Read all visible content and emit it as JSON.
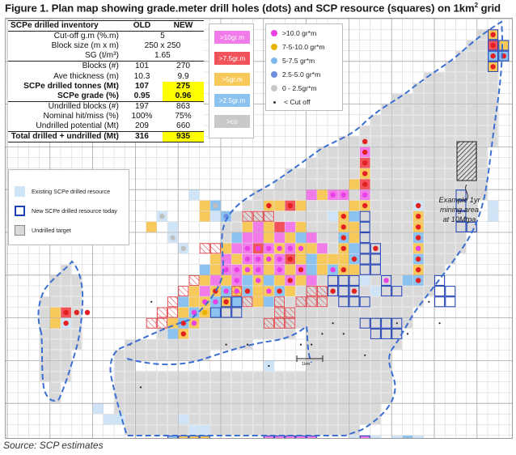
{
  "title": {
    "text": "Figure 1. Plan map showing grade.meter drill holes (dots) and SCP resource (squares) on 1km",
    "sup": "2",
    "tail": " grid"
  },
  "inventory": {
    "header": {
      "label": "SCPe drilled inventory",
      "old": "OLD",
      "new": "NEW"
    },
    "rows": [
      {
        "label": "Cut-off g.m (%.m)",
        "old": "5",
        "new": "",
        "span": true
      },
      {
        "label": "Block size (m x m)",
        "old": "250 x 250",
        "new": "",
        "span": true
      },
      {
        "label": "SG (t/m³)",
        "old": "1.65",
        "new": "",
        "span": true
      },
      {
        "label": "Blocks (#)",
        "old": "101",
        "new": "270"
      },
      {
        "label": "Ave thickness (m)",
        "old": "10.3",
        "new": "9.9"
      },
      {
        "label": "SCPe drilled tonnes (Mt)",
        "old": "107",
        "new": "275",
        "bold": true
      },
      {
        "label": "SCPe grade (%)",
        "old": "0.95",
        "new": "0.96",
        "bold": true
      },
      {
        "label": "Undrilled blocks (#)",
        "old": "197",
        "new": "863"
      },
      {
        "label": "Nominal hit/miss (%)",
        "old": "100%",
        "new": "75%"
      },
      {
        "label": "Undrilled potential (Mt)",
        "old": "209",
        "new": "660"
      },
      {
        "label": "Total drilled + undrilled (Mt)",
        "old": "316",
        "new": "935",
        "bold": true
      }
    ]
  },
  "resource_legend": {
    "items": [
      {
        "label": "Existing SCPe drilled resource",
        "color": "#cfe4f7"
      },
      {
        "label": "New SCPe drilled resource today",
        "color": "#1f3fb8"
      },
      {
        "label": "Undrilled target",
        "color": "#d9d9d9"
      }
    ]
  },
  "square_legend": {
    "items": [
      {
        "label": ">10gr.m",
        "color": "#f27bea"
      },
      {
        "label": ">7.5gr.m",
        "color": "#f2525a"
      },
      {
        "label": ">5gr.m",
        "color": "#f7c85a"
      },
      {
        "label": ">2.5gr.m",
        "color": "#8cc2ef"
      },
      {
        "label": ">co",
        "color": "#c9c9c9"
      }
    ]
  },
  "dot_legend": {
    "items": [
      {
        "label": ">10.0 gr*m",
        "color": "#e940e6"
      },
      {
        "label": "7-5-10.0 gr*m",
        "color": "#e8b400"
      },
      {
        "label": "5-7.5 gr*m",
        "color": "#7fb8ef"
      },
      {
        "label": "2.5-5.0 gr*m",
        "color": "#6e8fe0"
      },
      {
        "label": "0 - 2.5gr*m",
        "color": "#c8c8c8"
      },
      {
        "label": "< Cut off",
        "color": "#333333",
        "small": true
      }
    ]
  },
  "annotations": {
    "example": [
      "Example 1yr",
      "mining area",
      "at 10Mtpa"
    ],
    "scale": "1km"
  },
  "source": "Source:  SCP estimates",
  "colors": {
    "outline": "#3b6fd1",
    "grid": "#b9b9b9",
    "gray_cell": "#d9d9d9",
    "highlight": "#ffff00"
  }
}
